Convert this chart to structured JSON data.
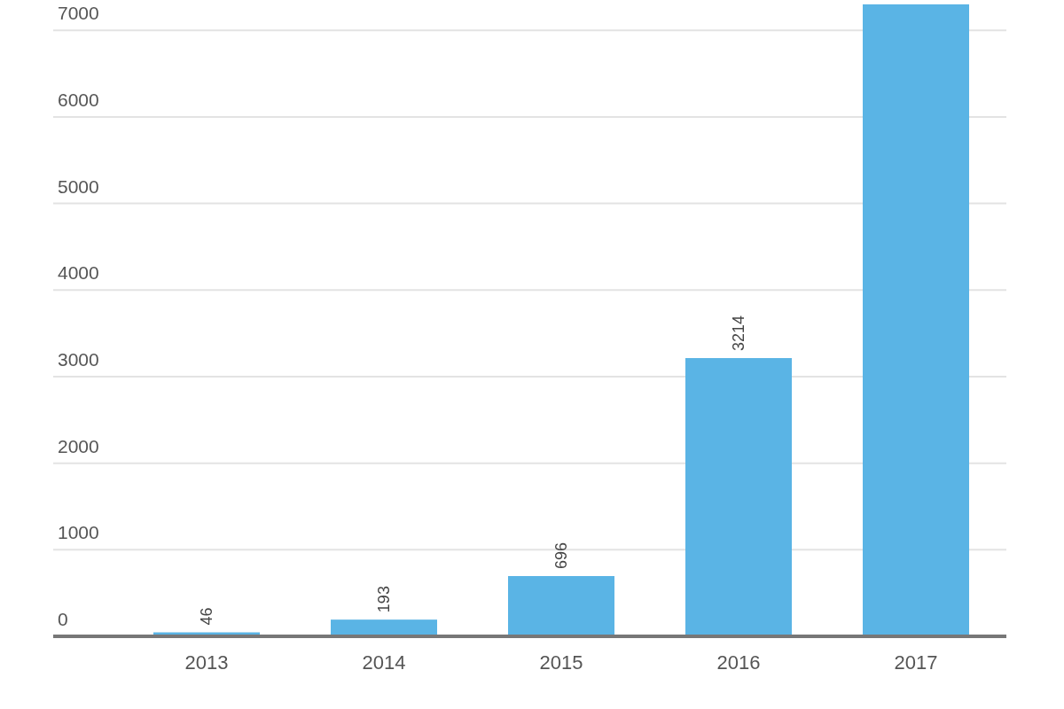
{
  "chart_data": {
    "type": "bar",
    "categories": [
      "2013",
      "2014",
      "2015",
      "2016",
      "2017"
    ],
    "values": [
      46,
      193,
      696,
      3214,
      7300
    ],
    "value_labels": [
      "46",
      "193",
      "696",
      "3214",
      null
    ],
    "color": "#5ab4e5",
    "ylim": [
      0,
      7350
    ],
    "yticks": [
      0,
      1000,
      2000,
      3000,
      4000,
      5000,
      6000,
      7000
    ],
    "grid": "y"
  }
}
